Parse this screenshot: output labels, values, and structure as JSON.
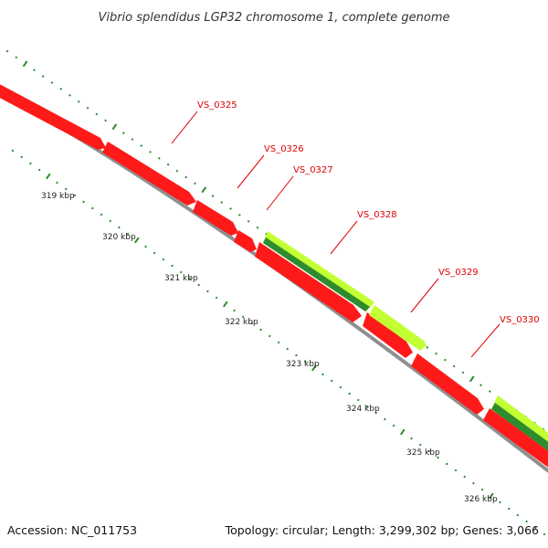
{
  "title": "Vibrio splendidus LGP32 chromosome 1, complete genome",
  "footer": {
    "accession": "Accession: NC_011753",
    "summary": "Topology: circular; Length: 3,299,302 bp; Genes: 3,066"
  },
  "colors": {
    "reverse_strand": "#ff1a1a",
    "forward_outer": "#c2ff33",
    "forward_inner": "#2e8b2e",
    "backbone": "#8f8f8f",
    "tick": "#2b8a2b",
    "label": "#e00000"
  },
  "scale_labels": [
    "319 kbp",
    "320 kbp",
    "321 kbp",
    "322 kbp",
    "323 kbp",
    "324 kbp",
    "325 kbp",
    "326 kbp"
  ],
  "genes": [
    {
      "label": "VS_0325",
      "strand": "reverse"
    },
    {
      "label": "VS_0326",
      "strand": "reverse"
    },
    {
      "label": "VS_0327",
      "strand": "reverse"
    },
    {
      "label": "VS_0328",
      "strand": "forward"
    },
    {
      "label": "VS_0329",
      "strand": "forward"
    },
    {
      "label": "VS_0330",
      "strand": "forward"
    }
  ]
}
